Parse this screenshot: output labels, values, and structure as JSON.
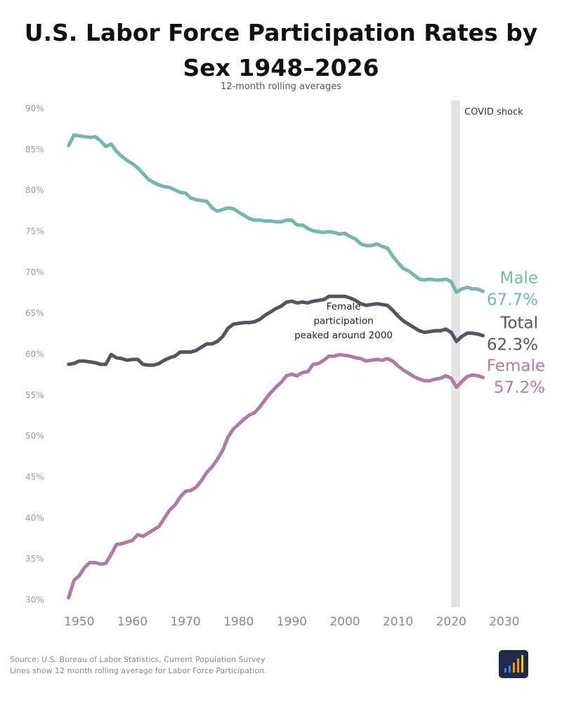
{
  "chart_data": {
    "type": "line",
    "title": "U.S. Labor Force Participation Rates by Sex 1948–2026",
    "subtitle": "12-month rolling averages",
    "x": [
      1948,
      1949,
      1950,
      1951,
      1952,
      1953,
      1954,
      1955,
      1956,
      1957,
      1958,
      1959,
      1960,
      1961,
      1962,
      1963,
      1964,
      1965,
      1966,
      1967,
      1968,
      1969,
      1970,
      1971,
      1972,
      1973,
      1974,
      1975,
      1976,
      1977,
      1978,
      1979,
      1980,
      1981,
      1982,
      1983,
      1984,
      1985,
      1986,
      1987,
      1988,
      1989,
      1990,
      1991,
      1992,
      1993,
      1994,
      1995,
      1996,
      1997,
      1998,
      1999,
      2000,
      2001,
      2002,
      2003,
      2004,
      2005,
      2006,
      2007,
      2008,
      2009,
      2010,
      2011,
      2012,
      2013,
      2014,
      2015,
      2016,
      2017,
      2018,
      2019,
      2020,
      2021,
      2022,
      2023,
      2024,
      2025,
      2026
    ],
    "series": [
      {
        "name": "Male",
        "color": "#76b7ac",
        "values": [
          85.5,
          86.8,
          86.7,
          86.6,
          86.5,
          86.6,
          86.1,
          85.4,
          85.7,
          84.8,
          84.2,
          83.7,
          83.3,
          82.8,
          82.1,
          81.4,
          81.0,
          80.7,
          80.5,
          80.4,
          80.1,
          79.8,
          79.7,
          79.1,
          78.9,
          78.8,
          78.7,
          77.9,
          77.5,
          77.7,
          77.9,
          77.8,
          77.4,
          77.0,
          76.6,
          76.4,
          76.4,
          76.3,
          76.3,
          76.2,
          76.2,
          76.4,
          76.4,
          75.8,
          75.8,
          75.4,
          75.1,
          75.0,
          74.9,
          75.0,
          74.9,
          74.7,
          74.8,
          74.4,
          74.1,
          73.5,
          73.3,
          73.3,
          73.5,
          73.2,
          73.0,
          72.0,
          71.2,
          70.5,
          70.2,
          69.7,
          69.2,
          69.1,
          69.2,
          69.1,
          69.1,
          69.2,
          68.9,
          67.6,
          68.0,
          68.2,
          68.0,
          68.0,
          67.7
        ],
        "value_labels": [
          null,
          null,
          null,
          null,
          null,
          null,
          null,
          null,
          null,
          null,
          null,
          null,
          null,
          null,
          null,
          null,
          null,
          null,
          null,
          null,
          null,
          null,
          null,
          null,
          null,
          null,
          null,
          null,
          null,
          null,
          null,
          null,
          null,
          null,
          null,
          null,
          null,
          null,
          null,
          null,
          null,
          null,
          null,
          null,
          null,
          null,
          null,
          null,
          null,
          null,
          null,
          null,
          null,
          null,
          null,
          null,
          null,
          null,
          null,
          null,
          null,
          null,
          null,
          null,
          null,
          null,
          null,
          null,
          null,
          null,
          null,
          null,
          null,
          null,
          null,
          null,
          null,
          null,
          "67.7%"
        ]
      },
      {
        "name": "Total",
        "color": "#54555f",
        "values": [
          58.8,
          58.9,
          59.2,
          59.2,
          59.1,
          59.0,
          58.8,
          58.8,
          60.0,
          59.6,
          59.5,
          59.3,
          59.4,
          59.4,
          58.8,
          58.7,
          58.7,
          58.9,
          59.3,
          59.6,
          59.8,
          60.3,
          60.3,
          60.3,
          60.5,
          60.9,
          61.3,
          61.3,
          61.6,
          62.2,
          63.2,
          63.7,
          63.8,
          63.9,
          63.9,
          64.0,
          64.3,
          64.8,
          65.2,
          65.6,
          65.9,
          66.4,
          66.5,
          66.3,
          66.4,
          66.3,
          66.5,
          66.6,
          66.7,
          67.1,
          67.1,
          67.1,
          67.1,
          66.9,
          66.6,
          66.2,
          66.0,
          66.1,
          66.2,
          66.1,
          66.0,
          65.4,
          64.7,
          64.1,
          63.7,
          63.3,
          62.9,
          62.7,
          62.8,
          62.9,
          62.9,
          63.1,
          62.7,
          61.6,
          62.2,
          62.6,
          62.6,
          62.5,
          62.3
        ],
        "value_labels": [
          null,
          null,
          null,
          null,
          null,
          null,
          null,
          null,
          null,
          null,
          null,
          null,
          null,
          null,
          null,
          null,
          null,
          null,
          null,
          null,
          null,
          null,
          null,
          null,
          null,
          null,
          null,
          null,
          null,
          null,
          null,
          null,
          null,
          null,
          null,
          null,
          null,
          null,
          null,
          null,
          null,
          null,
          null,
          null,
          null,
          null,
          null,
          null,
          null,
          null,
          null,
          null,
          null,
          null,
          null,
          null,
          null,
          null,
          null,
          null,
          null,
          null,
          null,
          null,
          null,
          null,
          null,
          null,
          null,
          null,
          null,
          null,
          null,
          null,
          null,
          null,
          null,
          null,
          "62.3%"
        ]
      },
      {
        "name": "Female",
        "color": "#b07aa1",
        "values": [
          30.3,
          32.4,
          33.0,
          34.0,
          34.6,
          34.6,
          34.4,
          34.5,
          35.6,
          36.8,
          36.9,
          37.1,
          37.3,
          38.0,
          37.8,
          38.2,
          38.6,
          39.0,
          40.0,
          41.0,
          41.6,
          42.6,
          43.3,
          43.4,
          43.8,
          44.6,
          45.6,
          46.3,
          47.2,
          48.3,
          49.9,
          50.9,
          51.5,
          52.1,
          52.6,
          52.9,
          53.6,
          54.5,
          55.3,
          56.0,
          56.6,
          57.4,
          57.6,
          57.4,
          57.8,
          57.9,
          58.8,
          58.9,
          59.3,
          59.8,
          59.8,
          60.0,
          59.9,
          59.8,
          59.6,
          59.5,
          59.2,
          59.3,
          59.4,
          59.3,
          59.5,
          59.2,
          58.6,
          58.1,
          57.7,
          57.3,
          57.0,
          56.8,
          56.8,
          57.0,
          57.1,
          57.4,
          57.1,
          56.0,
          56.7,
          57.3,
          57.5,
          57.4,
          57.2
        ],
        "value_labels": [
          null,
          null,
          null,
          null,
          null,
          null,
          null,
          null,
          null,
          null,
          null,
          null,
          null,
          null,
          null,
          null,
          null,
          null,
          null,
          null,
          null,
          null,
          null,
          null,
          null,
          null,
          null,
          null,
          null,
          null,
          null,
          null,
          null,
          null,
          null,
          null,
          null,
          null,
          null,
          null,
          null,
          null,
          null,
          null,
          null,
          null,
          null,
          null,
          null,
          null,
          null,
          null,
          null,
          null,
          null,
          null,
          null,
          null,
          null,
          null,
          null,
          null,
          null,
          null,
          null,
          null,
          null,
          null,
          null,
          null,
          null,
          null,
          null,
          null,
          null,
          null,
          null,
          null,
          "57.2%"
        ]
      }
    ],
    "xlim": [
      1945,
      2032
    ],
    "xticks": [
      1950,
      1960,
      1970,
      1980,
      1990,
      2000,
      2010,
      2020,
      2030
    ],
    "ylim": [
      30,
      90
    ],
    "yticks": [
      {
        "value": 30,
        "label": "30%"
      },
      {
        "value": 35,
        "label": "35%"
      },
      {
        "value": 40,
        "label": "40%"
      },
      {
        "value": 45,
        "label": "45%"
      },
      {
        "value": 50,
        "label": "50%"
      },
      {
        "value": 55,
        "label": "55%"
      },
      {
        "value": 60,
        "label": "60%"
      },
      {
        "value": 65,
        "label": "65%"
      },
      {
        "value": 70,
        "label": "70%"
      },
      {
        "value": 75,
        "label": "75%"
      },
      {
        "value": 80,
        "label": "80%"
      },
      {
        "value": 85,
        "label": "85%"
      },
      {
        "value": 90,
        "label": "90%"
      }
    ],
    "grid": false,
    "covid_band": {
      "label": "COVID shock",
      "start": 2020,
      "end": 2021.7
    },
    "annotation_lines": [
      "Female",
      "participation",
      "peaked around 2000"
    ],
    "notes": [
      "Source: U.S. Bureau of Labor Statistics, Current Population Survey",
      "Lines show 12 month rolling average for Labor Force Participation."
    ]
  }
}
